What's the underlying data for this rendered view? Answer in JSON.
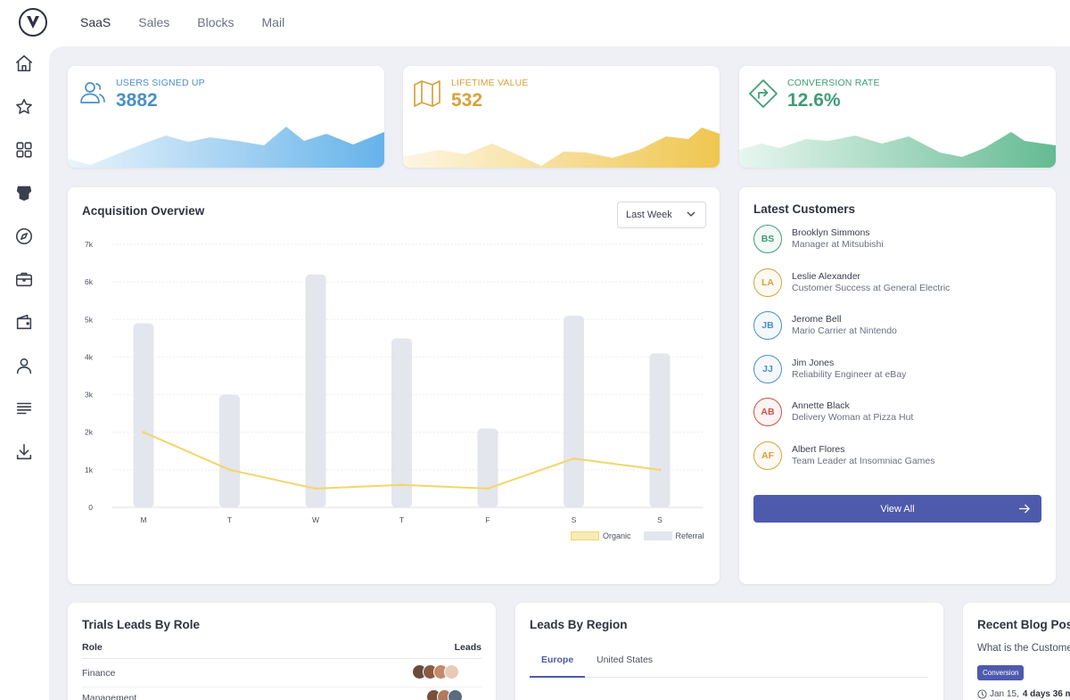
{
  "nav": {
    "items": [
      "SaaS",
      "Sales",
      "Blocks",
      "Mail"
    ],
    "active": "SaaS"
  },
  "sidebar": {
    "icons": [
      "home-icon",
      "star-icon",
      "grid-icon",
      "robot-icon",
      "compass-icon",
      "briefcase-icon",
      "wallet-icon",
      "user-icon",
      "lines-icon",
      "download-icon"
    ]
  },
  "kpis": [
    {
      "label": "USERS SIGNED UP",
      "value": "3882",
      "color": "#4a8fc8",
      "icon": "users-icon"
    },
    {
      "label": "LIFETIME VALUE",
      "value": "532",
      "color": "#d7a23a",
      "icon": "map-icon"
    },
    {
      "label": "CONVERSION RATE",
      "value": "12.6%",
      "color": "#3d9d76",
      "icon": "direction-sign-icon"
    }
  ],
  "acquisition": {
    "title": "Acquisition Overview",
    "range_label": "Last Week",
    "legend": [
      "Organic",
      "Referral"
    ]
  },
  "chart_data": {
    "type": "bar",
    "categories": [
      "M",
      "T",
      "W",
      "T",
      "F",
      "S",
      "S"
    ],
    "series": [
      {
        "name": "Referral",
        "type": "bar",
        "values": [
          4900,
          3000,
          6200,
          4500,
          2100,
          5100,
          4100
        ],
        "color": "#e3e6ec"
      },
      {
        "name": "Organic",
        "type": "line",
        "values": [
          2000,
          1000,
          500,
          600,
          500,
          1300,
          1000
        ],
        "color": "#f2d66b"
      }
    ],
    "y_ticks": [
      "0",
      "1k",
      "2k",
      "3k",
      "4k",
      "5k",
      "6k",
      "7k"
    ],
    "ylim": [
      0,
      7000
    ],
    "grid": true,
    "legend_position": "bottom-right"
  },
  "customers": {
    "title": "Latest Customers",
    "items": [
      {
        "initials": "BS",
        "name": "Brooklyn Simmons",
        "role": "Manager at Mitsubishi",
        "color": "#3d9d76"
      },
      {
        "initials": "LA",
        "name": "Leslie Alexander",
        "role": "Customer Success at General Electric",
        "color": "#d7a23a"
      },
      {
        "initials": "JB",
        "name": "Jerome Bell",
        "role": "Mario Carrier at Nintendo",
        "color": "#4a8fc8"
      },
      {
        "initials": "JJ",
        "name": "Jim Jones",
        "role": "Reliability Engineer at eBay",
        "color": "#4a8fc8"
      },
      {
        "initials": "AB",
        "name": "Annette Black",
        "role": "Delivery Woman at Pizza Hut",
        "color": "#d0504a"
      },
      {
        "initials": "AF",
        "name": "Albert Flores",
        "role": "Team Leader at Insomniac Games",
        "color": "#d7a23a"
      }
    ],
    "view_all": "View All"
  },
  "trials": {
    "title": "Trials Leads By Role",
    "col_role": "Role",
    "col_leads": "Leads",
    "rows": [
      "Finance",
      "Management"
    ]
  },
  "region": {
    "title": "Leads By Region",
    "tabs": [
      "Europe",
      "United States"
    ],
    "active_tab": "Europe"
  },
  "blog": {
    "title": "Recent Blog Posts",
    "post_title": "What is the Customer",
    "tag": "Conversion",
    "date": "Jan 15,",
    "read": "4 days 36 m"
  }
}
